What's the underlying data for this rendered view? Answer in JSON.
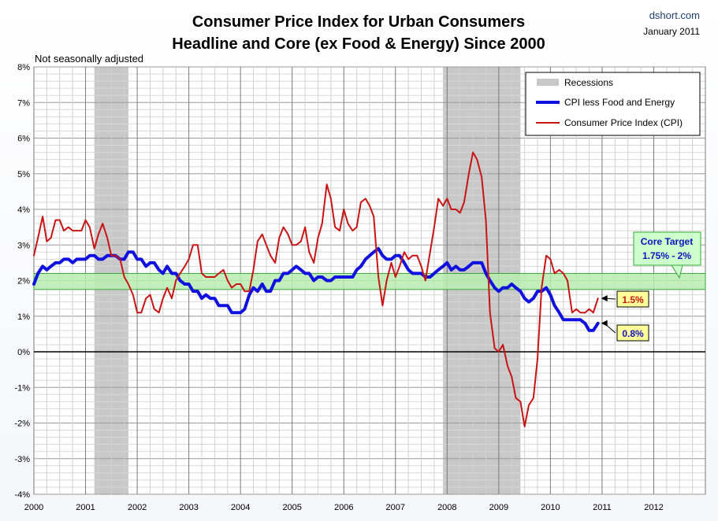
{
  "header": {
    "title_line1": "Consumer Price Index for Urban Consumers",
    "title_line2": "Headline and Core (ex Food & Energy) Since 2000",
    "source": "dshort.com",
    "date": "January 2011",
    "note": "Not seasonally adjusted"
  },
  "colors": {
    "core": "#1010e0",
    "headline": "#c81414",
    "recession": "#c8c8c8",
    "target_band": "#b8ecb0",
    "target_border": "#3aa53a",
    "label_yellow": "#ffff99",
    "label_green": "#ccffcc"
  },
  "chart_data": {
    "type": "line",
    "x_unit": "year (decimal)",
    "xlim": [
      2000,
      2013
    ],
    "ylim": [
      -4,
      8
    ],
    "y_ticks": [
      "8%",
      "7%",
      "6%",
      "5%",
      "4%",
      "3%",
      "2%",
      "1%",
      "0%",
      "-1%",
      "-2%",
      "-3%",
      "-4%"
    ],
    "x_ticks": [
      "2000",
      "2001",
      "2002",
      "2003",
      "2004",
      "2005",
      "2006",
      "2007",
      "2008",
      "2009",
      "2010",
      "2011",
      "2012"
    ],
    "recessions": [
      {
        "start": 2001.17,
        "end": 2001.83
      },
      {
        "start": 2007.92,
        "end": 2009.42
      }
    ],
    "core_target": {
      "low": 1.75,
      "high": 2.0,
      "label_line1": "Core Target",
      "label_line2": "1.75% - 2%"
    },
    "legend": {
      "recessions": "Recessions",
      "core": "CPI less Food and Energy",
      "headline": "Consumer Price Index (CPI)"
    },
    "series": [
      {
        "name": "CPI less Food and Energy",
        "color": "#1010e0",
        "x": [
          2000.0,
          2000.08,
          2000.17,
          2000.25,
          2000.33,
          2000.42,
          2000.5,
          2000.58,
          2000.67,
          2000.75,
          2000.83,
          2000.92,
          2001.0,
          2001.08,
          2001.17,
          2001.25,
          2001.33,
          2001.42,
          2001.5,
          2001.58,
          2001.67,
          2001.75,
          2001.83,
          2001.92,
          2002.0,
          2002.08,
          2002.17,
          2002.25,
          2002.33,
          2002.42,
          2002.5,
          2002.58,
          2002.67,
          2002.75,
          2002.83,
          2002.92,
          2003.0,
          2003.08,
          2003.17,
          2003.25,
          2003.33,
          2003.42,
          2003.5,
          2003.58,
          2003.67,
          2003.75,
          2003.83,
          2003.92,
          2004.0,
          2004.08,
          2004.17,
          2004.25,
          2004.33,
          2004.42,
          2004.5,
          2004.58,
          2004.67,
          2004.75,
          2004.83,
          2004.92,
          2005.0,
          2005.08,
          2005.17,
          2005.25,
          2005.33,
          2005.42,
          2005.5,
          2005.58,
          2005.67,
          2005.75,
          2005.83,
          2005.92,
          2006.0,
          2006.08,
          2006.17,
          2006.25,
          2006.33,
          2006.42,
          2006.5,
          2006.58,
          2006.67,
          2006.75,
          2006.83,
          2006.92,
          2007.0,
          2007.08,
          2007.17,
          2007.25,
          2007.33,
          2007.42,
          2007.5,
          2007.58,
          2007.67,
          2007.75,
          2007.83,
          2007.92,
          2008.0,
          2008.08,
          2008.17,
          2008.25,
          2008.33,
          2008.42,
          2008.5,
          2008.58,
          2008.67,
          2008.75,
          2008.83,
          2008.92,
          2009.0,
          2009.08,
          2009.17,
          2009.25,
          2009.33,
          2009.42,
          2009.5,
          2009.58,
          2009.67,
          2009.75,
          2009.83,
          2009.92,
          2010.0,
          2010.08,
          2010.17,
          2010.25,
          2010.33,
          2010.42,
          2010.5,
          2010.58,
          2010.67,
          2010.75,
          2010.83,
          2010.92
        ],
        "values": [
          1.9,
          2.2,
          2.4,
          2.3,
          2.4,
          2.5,
          2.5,
          2.6,
          2.6,
          2.5,
          2.6,
          2.6,
          2.6,
          2.7,
          2.7,
          2.6,
          2.6,
          2.7,
          2.7,
          2.7,
          2.6,
          2.6,
          2.8,
          2.8,
          2.6,
          2.6,
          2.4,
          2.5,
          2.5,
          2.3,
          2.2,
          2.4,
          2.2,
          2.2,
          2.0,
          1.9,
          1.9,
          1.7,
          1.7,
          1.5,
          1.6,
          1.5,
          1.5,
          1.3,
          1.3,
          1.3,
          1.1,
          1.1,
          1.1,
          1.2,
          1.6,
          1.8,
          1.7,
          1.9,
          1.7,
          1.7,
          2.0,
          2.0,
          2.2,
          2.2,
          2.3,
          2.4,
          2.3,
          2.2,
          2.2,
          2.0,
          2.1,
          2.1,
          2.0,
          2.0,
          2.1,
          2.1,
          2.1,
          2.1,
          2.1,
          2.3,
          2.4,
          2.6,
          2.7,
          2.8,
          2.9,
          2.7,
          2.6,
          2.6,
          2.7,
          2.7,
          2.5,
          2.3,
          2.2,
          2.2,
          2.2,
          2.1,
          2.1,
          2.2,
          2.3,
          2.4,
          2.5,
          2.3,
          2.4,
          2.3,
          2.3,
          2.4,
          2.5,
          2.5,
          2.5,
          2.2,
          2.0,
          1.8,
          1.7,
          1.8,
          1.8,
          1.9,
          1.8,
          1.7,
          1.5,
          1.4,
          1.5,
          1.7,
          1.7,
          1.8,
          1.6,
          1.3,
          1.1,
          0.9,
          0.9,
          0.9,
          0.9,
          0.9,
          0.8,
          0.6,
          0.6,
          0.8
        ]
      },
      {
        "name": "Consumer Price Index (CPI)",
        "color": "#c81414",
        "x": [
          2000.0,
          2000.08,
          2000.17,
          2000.25,
          2000.33,
          2000.42,
          2000.5,
          2000.58,
          2000.67,
          2000.75,
          2000.83,
          2000.92,
          2001.0,
          2001.08,
          2001.17,
          2001.25,
          2001.33,
          2001.42,
          2001.5,
          2001.58,
          2001.67,
          2001.75,
          2001.83,
          2001.92,
          2002.0,
          2002.08,
          2002.17,
          2002.25,
          2002.33,
          2002.42,
          2002.5,
          2002.58,
          2002.67,
          2002.75,
          2002.83,
          2002.92,
          2003.0,
          2003.08,
          2003.17,
          2003.25,
          2003.33,
          2003.42,
          2003.5,
          2003.58,
          2003.67,
          2003.75,
          2003.83,
          2003.92,
          2004.0,
          2004.08,
          2004.17,
          2004.25,
          2004.33,
          2004.42,
          2004.5,
          2004.58,
          2004.67,
          2004.75,
          2004.83,
          2004.92,
          2005.0,
          2005.08,
          2005.17,
          2005.25,
          2005.33,
          2005.42,
          2005.5,
          2005.58,
          2005.67,
          2005.75,
          2005.83,
          2005.92,
          2006.0,
          2006.08,
          2006.17,
          2006.25,
          2006.33,
          2006.42,
          2006.5,
          2006.58,
          2006.67,
          2006.75,
          2006.83,
          2006.92,
          2007.0,
          2007.08,
          2007.17,
          2007.25,
          2007.33,
          2007.42,
          2007.5,
          2007.58,
          2007.67,
          2007.75,
          2007.83,
          2007.92,
          2008.0,
          2008.08,
          2008.17,
          2008.25,
          2008.33,
          2008.42,
          2008.5,
          2008.58,
          2008.67,
          2008.75,
          2008.83,
          2008.92,
          2009.0,
          2009.08,
          2009.17,
          2009.25,
          2009.33,
          2009.42,
          2009.5,
          2009.58,
          2009.67,
          2009.75,
          2009.83,
          2009.92,
          2010.0,
          2010.08,
          2010.17,
          2010.25,
          2010.33,
          2010.42,
          2010.5,
          2010.58,
          2010.67,
          2010.75,
          2010.83,
          2010.92
        ],
        "values": [
          2.7,
          3.2,
          3.8,
          3.1,
          3.2,
          3.7,
          3.7,
          3.4,
          3.5,
          3.4,
          3.4,
          3.4,
          3.7,
          3.5,
          2.9,
          3.3,
          3.6,
          3.2,
          2.7,
          2.7,
          2.6,
          2.1,
          1.9,
          1.6,
          1.1,
          1.1,
          1.5,
          1.6,
          1.2,
          1.1,
          1.5,
          1.8,
          1.5,
          2.0,
          2.2,
          2.4,
          2.6,
          3.0,
          3.0,
          2.2,
          2.1,
          2.1,
          2.1,
          2.2,
          2.3,
          2.0,
          1.8,
          1.9,
          1.9,
          1.7,
          1.7,
          2.3,
          3.1,
          3.3,
          3.0,
          2.7,
          2.5,
          3.2,
          3.5,
          3.3,
          3.0,
          3.0,
          3.1,
          3.5,
          2.8,
          2.5,
          3.2,
          3.6,
          4.7,
          4.3,
          3.5,
          3.4,
          4.0,
          3.6,
          3.4,
          3.5,
          4.2,
          4.3,
          4.1,
          3.8,
          2.1,
          1.3,
          2.0,
          2.5,
          2.1,
          2.4,
          2.8,
          2.6,
          2.7,
          2.7,
          2.4,
          2.0,
          2.8,
          3.5,
          4.3,
          4.1,
          4.3,
          4.0,
          4.0,
          3.9,
          4.2,
          5.0,
          5.6,
          5.4,
          4.9,
          3.7,
          1.1,
          0.1,
          0.0,
          0.2,
          -0.4,
          -0.7,
          -1.3,
          -1.4,
          -2.1,
          -1.5,
          -1.3,
          -0.2,
          1.8,
          2.7,
          2.6,
          2.2,
          2.3,
          2.2,
          2.0,
          1.1,
          1.2,
          1.1,
          1.1,
          1.2,
          1.1,
          1.5
        ]
      }
    ],
    "annotations": [
      {
        "text": "1.5%",
        "series": "Consumer Price Index (CPI)",
        "x": 2010.92,
        "y": 1.5
      },
      {
        "text": "0.8%",
        "series": "CPI less Food and Energy",
        "x": 2010.92,
        "y": 0.8
      }
    ]
  }
}
